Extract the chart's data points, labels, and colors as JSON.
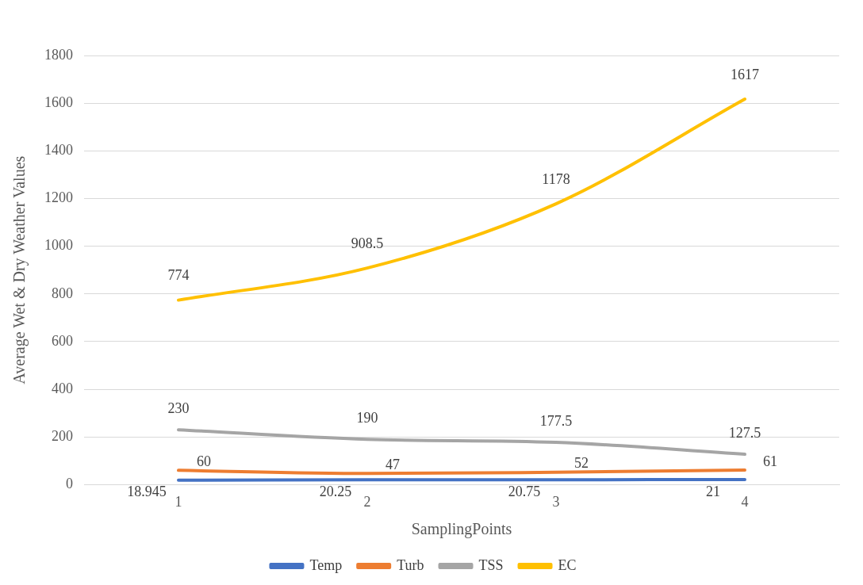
{
  "chart_data": {
    "type": "line",
    "xlabel": "SamplingPoints",
    "ylabel": "Average Wet & Dry Weather Values",
    "categories": [
      "1",
      "2",
      "3",
      "4"
    ],
    "series": [
      {
        "name": "Temp",
        "color": "#4472c4",
        "values": [
          18.945,
          20.25,
          20.75,
          21
        ]
      },
      {
        "name": "Turb",
        "color": "#ed7d31",
        "values": [
          60,
          47,
          52,
          61
        ]
      },
      {
        "name": "TSS",
        "color": "#a5a5a5",
        "values": [
          230,
          190,
          177.5,
          127.5
        ]
      },
      {
        "name": "EC",
        "color": "#ffc000",
        "values": [
          774,
          908.5,
          1178,
          1617
        ]
      }
    ],
    "ylim": [
      0,
      1800
    ],
    "yticks": [
      0,
      200,
      400,
      600,
      800,
      1000,
      1200,
      1400,
      1600,
      1800
    ],
    "grid": "y",
    "legend": "bottom",
    "marker": "none",
    "line_style": "solid",
    "data_labels": true
  }
}
